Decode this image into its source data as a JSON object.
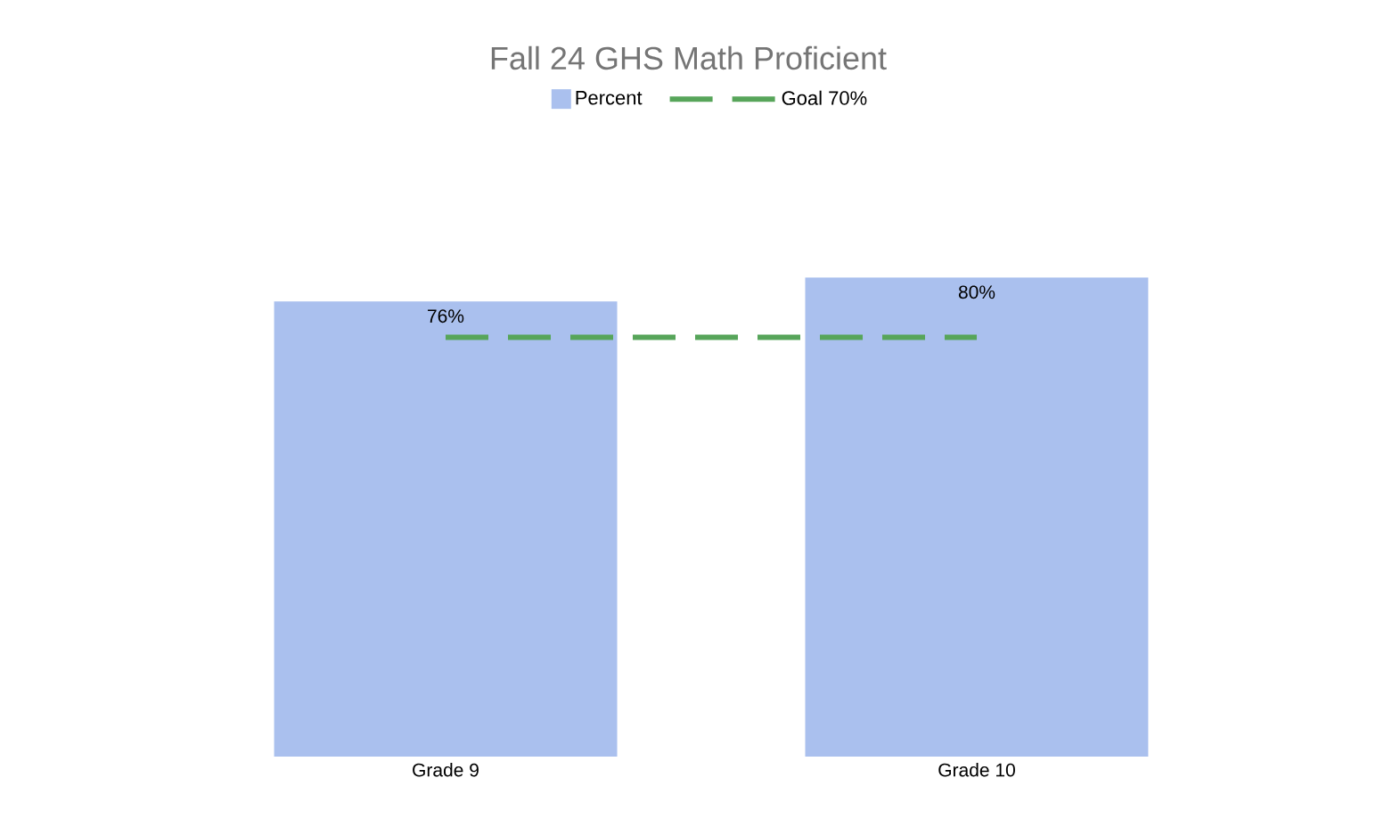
{
  "chart_data": {
    "type": "bar",
    "title": "Fall 24 GHS Math Proficient",
    "categories": [
      "Grade 9",
      "Grade 10"
    ],
    "series": [
      {
        "name": "Percent",
        "type": "bar",
        "color": "#aac0ee",
        "values": [
          76,
          80
        ],
        "value_labels": [
          "76%",
          "80%"
        ]
      },
      {
        "name": "Goal 70%",
        "type": "line",
        "color": "#57a55a",
        "values": [
          70,
          70
        ],
        "line_style": "dashed"
      }
    ],
    "legend": "top"
  }
}
